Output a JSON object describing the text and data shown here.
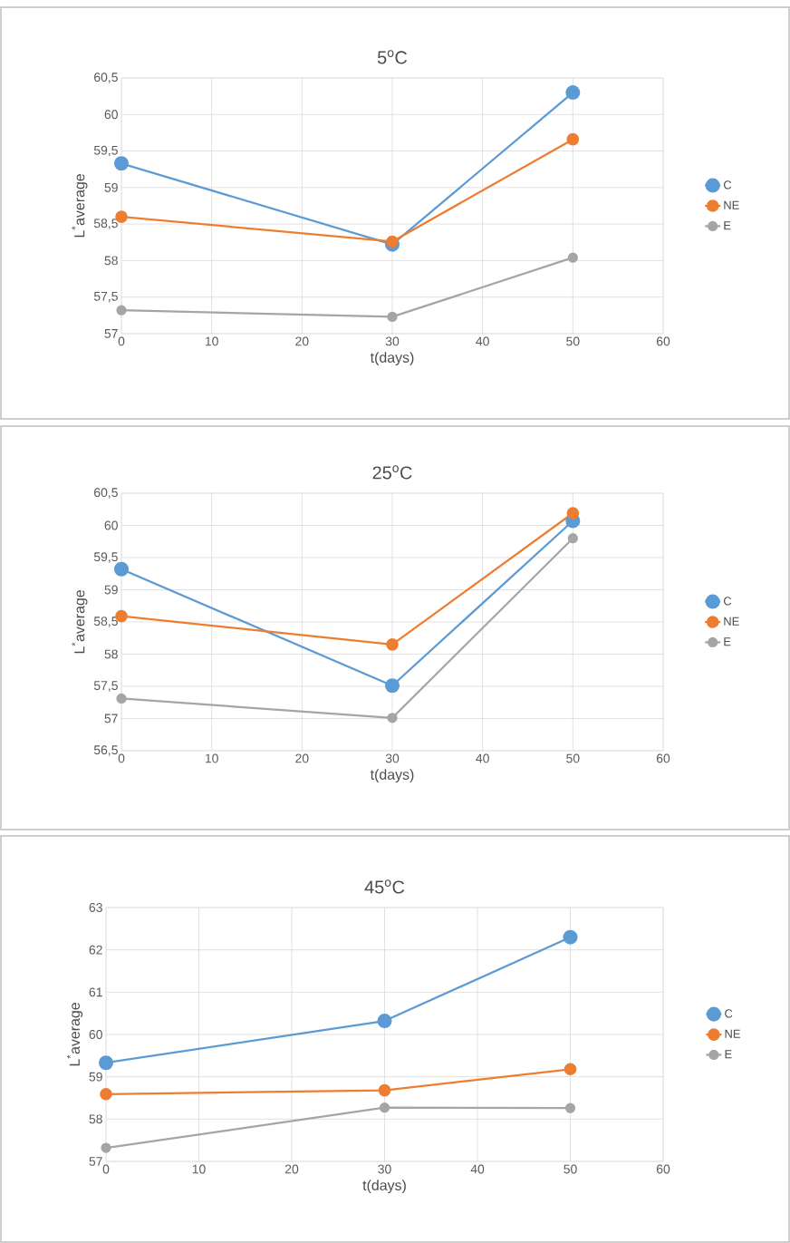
{
  "chart_data": [
    {
      "type": "line",
      "title": "5$^{o}$C",
      "xlabel": "t(days)",
      "ylabel": "L$^{*}$average",
      "x": [
        0,
        30,
        50
      ],
      "xlim": [
        0,
        60
      ],
      "xticks": [
        0,
        10,
        20,
        30,
        40,
        50,
        60
      ],
      "ylim": [
        57,
        60.5
      ],
      "yticks": [
        57,
        {
          "value": 57.5,
          "label": "57,5"
        },
        58,
        {
          "value": 58.5,
          "label": "58,5"
        },
        59,
        {
          "value": 59.5,
          "label": "59,5"
        },
        60,
        {
          "value": 60.5,
          "label": "60,5"
        }
      ],
      "grid": true,
      "legend": "right",
      "marker": "circle",
      "line_style": "solid",
      "series": [
        {
          "name": "C",
          "color": "#5b9bd5",
          "values": [
            59.33,
            58.22,
            60.3
          ]
        },
        {
          "name": "NE",
          "color": "#ed7d31",
          "values": [
            58.6,
            58.26,
            59.66
          ]
        },
        {
          "name": "E",
          "color": "#a5a5a5",
          "values": [
            57.32,
            57.23,
            58.04
          ]
        }
      ]
    },
    {
      "type": "line",
      "title": "25$^{o}$C",
      "xlabel": "t(days)",
      "ylabel": "L$^{*}$average",
      "x": [
        0,
        30,
        50
      ],
      "xlim": [
        0,
        60
      ],
      "xticks": [
        0,
        10,
        20,
        30,
        40,
        50,
        60
      ],
      "ylim": [
        56.5,
        60.5
      ],
      "yticks": [
        {
          "value": 56.5,
          "label": "56,5"
        },
        57,
        {
          "value": 57.5,
          "label": "57,5"
        },
        58,
        {
          "value": 58.5,
          "label": "58,5"
        },
        59,
        {
          "value": 59.5,
          "label": "59,5"
        },
        60,
        {
          "value": 60.5,
          "label": "60,5"
        }
      ],
      "grid": true,
      "legend": "right",
      "marker": "circle",
      "line_style": "solid",
      "series": [
        {
          "name": "C",
          "color": "#5b9bd5",
          "values": [
            59.32,
            57.51,
            60.07
          ]
        },
        {
          "name": "NE",
          "color": "#ed7d31",
          "values": [
            58.59,
            58.15,
            60.19
          ]
        },
        {
          "name": "E",
          "color": "#a5a5a5",
          "values": [
            57.31,
            57.01,
            59.8
          ]
        }
      ]
    },
    {
      "type": "line",
      "title": "45$^{o}$C",
      "xlabel": "t(days)",
      "ylabel": "L$^{*}$average",
      "x": [
        0,
        30,
        50
      ],
      "xlim": [
        0,
        60
      ],
      "xticks": [
        0,
        10,
        20,
        30,
        40,
        50,
        60
      ],
      "ylim": [
        57,
        63
      ],
      "yticks": [
        57,
        58,
        59,
        60,
        61,
        62,
        63
      ],
      "grid": true,
      "legend": "right",
      "marker": "circle",
      "line_style": "solid",
      "series": [
        {
          "name": "C",
          "color": "#5b9bd5",
          "values": [
            59.33,
            60.32,
            62.3
          ]
        },
        {
          "name": "NE",
          "color": "#ed7d31",
          "values": [
            58.59,
            58.68,
            59.18
          ]
        },
        {
          "name": "E",
          "color": "#a5a5a5",
          "values": [
            57.32,
            58.27,
            58.26
          ]
        }
      ]
    }
  ]
}
